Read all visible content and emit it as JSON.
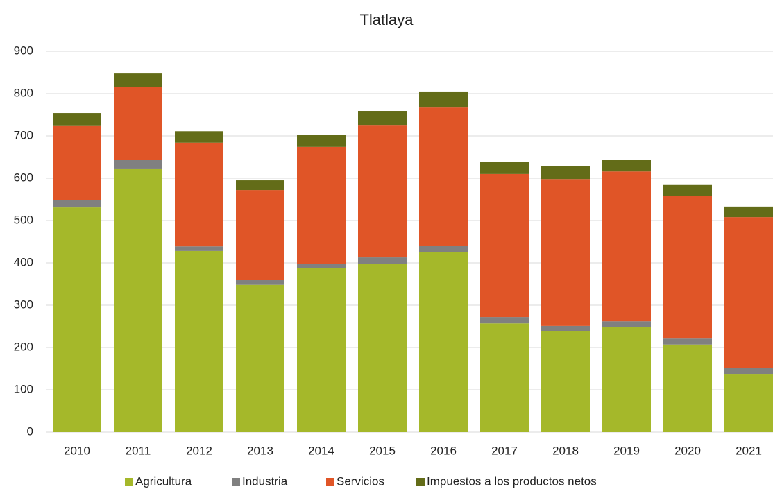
{
  "chart_data": {
    "type": "stacked_bar",
    "title": "Tlatlaya",
    "categories": [
      "2010",
      "2011",
      "2012",
      "2013",
      "2014",
      "2015",
      "2016",
      "2017",
      "2018",
      "2019",
      "2020",
      "2021"
    ],
    "series": [
      {
        "name": "Agricultura",
        "color": "#a5b82a",
        "values": [
          531,
          623,
          428,
          348,
          387,
          397,
          426,
          257,
          238,
          248,
          207,
          136
        ]
      },
      {
        "name": "Industria",
        "color": "#808080",
        "values": [
          17,
          20,
          11,
          11,
          11,
          16,
          15,
          15,
          13,
          14,
          14,
          15
        ]
      },
      {
        "name": "Servicios",
        "color": "#e05527",
        "values": [
          177,
          172,
          245,
          213,
          276,
          313,
          326,
          338,
          347,
          354,
          338,
          357
        ]
      },
      {
        "name": "Impuestos a los productos netos",
        "color": "#636c18",
        "values": [
          29,
          34,
          27,
          23,
          28,
          33,
          38,
          28,
          30,
          28,
          25,
          25
        ]
      }
    ],
    "ylim": [
      0,
      900
    ],
    "yticks": [
      0,
      100,
      200,
      300,
      400,
      500,
      600,
      700,
      800,
      900
    ],
    "grid": true,
    "legend": "bottom"
  }
}
